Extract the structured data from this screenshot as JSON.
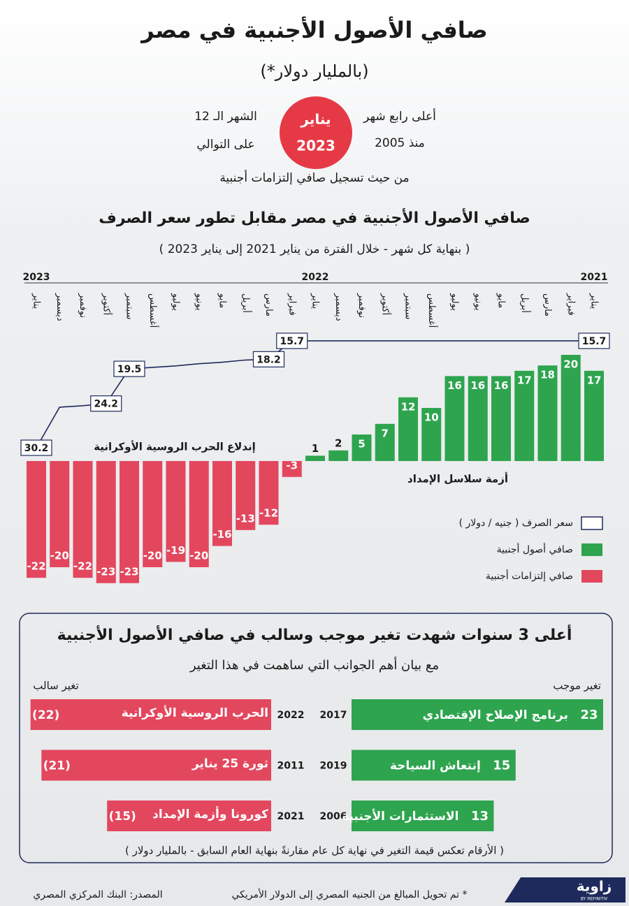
{
  "header": {
    "title": "صافي الأصول الأجنبية في مصر",
    "subtitle": "(بالمليار دولار*)",
    "fact_right": [
      "أعلى رابع شهر",
      "منذ 2005"
    ],
    "badge": [
      "يناير",
      "2023"
    ],
    "fact_left": [
      "الشهر الـ 12",
      "على التوالي"
    ],
    "fact_note": "من حيث تسجيل صافي إلتزامات أجنبية"
  },
  "chart_data": [
    {
      "type": "bar",
      "title": "صافي الأصول الأجنبية في مصر مقابل تطور سعر الصرف",
      "subtitle": "( بنهاية كل شهر - خلال الفترة من يناير 2021 إلى يناير 2023 )",
      "direction": "rtl",
      "categories": [
        "يناير",
        "فبراير",
        "مارس",
        "أبريل",
        "مايو",
        "يونيو",
        "يوليو",
        "أغسطس",
        "سبتمبر",
        "أكتوبر",
        "نوفمبر",
        "ديسمبر",
        "يناير",
        "فبراير",
        "مارس",
        "أبريل",
        "مايو",
        "يونيو",
        "يوليو",
        "أغسطس",
        "سبتمبر",
        "أكتوبر",
        "نوفمبر",
        "ديسمبر",
        "يناير"
      ],
      "year_markers": [
        {
          "label": "2021",
          "category_index": 0
        },
        {
          "label": "2022",
          "category_index": 12
        },
        {
          "label": "2023",
          "category_index": 24
        }
      ],
      "series": [
        {
          "type": "bar",
          "positive_name": "صافي أصول أجنبية",
          "positive_color": "#2ea44f",
          "negative_name": "صافي إلتزامات أجنبية",
          "negative_color": "#e2475e",
          "values": [
            17,
            20,
            18,
            17,
            16,
            16,
            16,
            10,
            12,
            7,
            5,
            2,
            1,
            -3,
            -12,
            -13,
            -16,
            -20,
            -19,
            -20,
            -23,
            -23,
            -22,
            -20,
            -22
          ]
        },
        {
          "type": "line",
          "name": "سعر الصرف ( جنيه / دولار )",
          "color": "#1f2a5c",
          "axis": "y2",
          "values": [
            15.7,
            15.7,
            15.7,
            15.7,
            15.7,
            15.7,
            15.7,
            15.7,
            15.7,
            15.7,
            15.7,
            15.7,
            15.7,
            15.7,
            18.2,
            18.3,
            18.6,
            18.8,
            19.1,
            19.3,
            19.5,
            24.2,
            24.5,
            24.7,
            30.2
          ],
          "value_labels": [
            "15.7",
            null,
            null,
            null,
            null,
            null,
            null,
            null,
            null,
            null,
            null,
            null,
            null,
            "15.7",
            "18.2",
            null,
            null,
            null,
            null,
            null,
            "19.5",
            "24.2",
            null,
            null,
            "30.2"
          ]
        }
      ],
      "annotations": [
        "إندلاع الحرب الروسية الأوكرانية",
        "أزمة سلاسل الإمداد"
      ],
      "ylim": [
        -25,
        25
      ],
      "y2lim": [
        14,
        32
      ],
      "y2_inverted": true
    },
    {
      "type": "hbar",
      "label": "تغير موجب",
      "categories": [
        "2017",
        "2019",
        "2006"
      ],
      "descriptions": [
        "برنامج الإصلاح الإقتصادي",
        "إنتعاش السياحة",
        "الاستثمارات الأجنبية"
      ],
      "values": [
        23,
        15,
        13
      ],
      "color": "#2ea44f",
      "xlim": [
        0,
        23
      ]
    },
    {
      "type": "hbar",
      "label": "تغير سالب",
      "categories": [
        "2022",
        "2011",
        "2021"
      ],
      "descriptions": [
        "الحرب الروسية الأوكرانية",
        "ثورة 25 يناير",
        "كورونا وأزمة الإمداد"
      ],
      "values": [
        -22,
        -21,
        -15
      ],
      "value_labels": [
        "(22)",
        "(21)",
        "(15)"
      ],
      "color": "#e2475e",
      "xlim": [
        -23,
        0
      ]
    }
  ],
  "panel": {
    "title": "أعلى 3 سنوات شهدت تغير موجب وسالب في صافي الأصول الأجنبية",
    "subtitle": "مع بيان أهم الجوانب التي ساهمت في هذا التغير",
    "footnote": "( الأرقام تعكس قيمة التغير في نهاية كل عام مقارنةً بنهاية العام السابق - بالمليار دولار )"
  },
  "footer": {
    "note": "* تم تحويل المبالغ من الجنيه المصري إلى الدولار الأمريكي",
    "source": "المصدر: البنك المركزي المصري",
    "brand": "زاوية",
    "brand_sub": "BY REFINITIV"
  }
}
